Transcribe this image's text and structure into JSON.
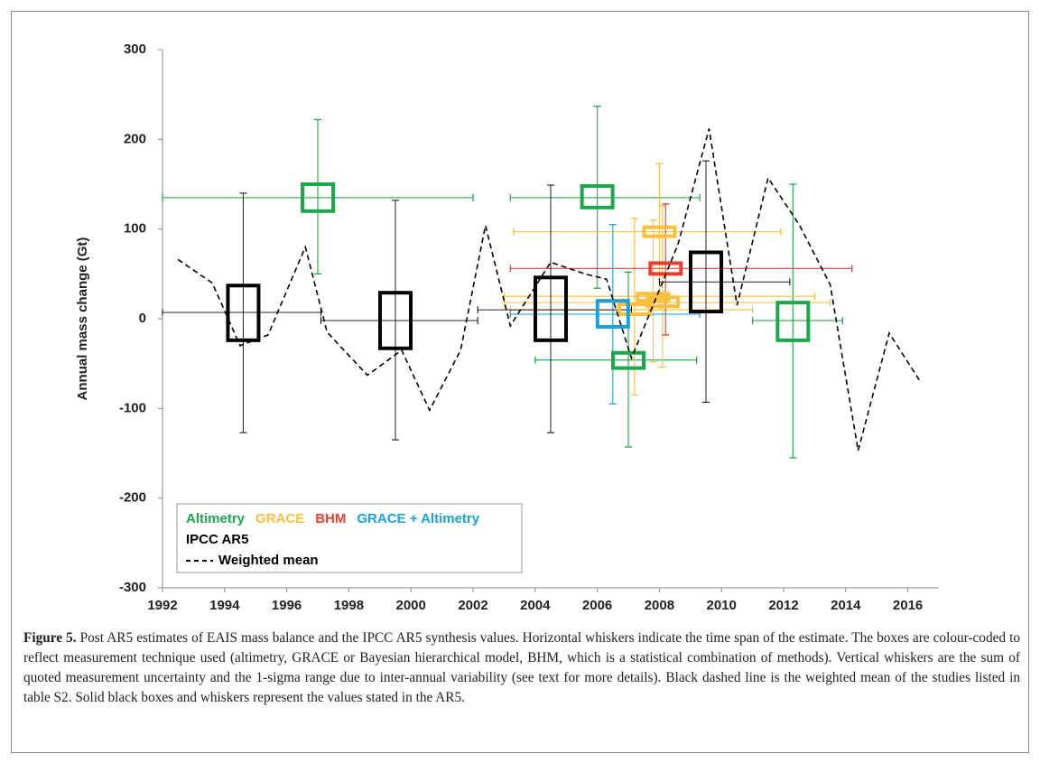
{
  "chart_data": {
    "type": "estimate",
    "ylabel": "Annual mass change (Gt)",
    "xlim": [
      1992,
      2017
    ],
    "xticks": [
      1992,
      1994,
      1996,
      1998,
      2000,
      2002,
      2004,
      2006,
      2008,
      2010,
      2012,
      2014,
      2016
    ],
    "ylim": [
      -300,
      300
    ],
    "yticks": [
      -300,
      -200,
      -100,
      0,
      100,
      200,
      300
    ],
    "series": [
      {
        "name": "Altimetry",
        "color": "#1ba84a",
        "estimates": [
          {
            "x_start": 1992,
            "x_end": 2002,
            "x": 1997,
            "value": 135,
            "low": 120,
            "high": 150,
            "whisker_low": 50,
            "whisker_high": 222
          },
          {
            "x_start": 2003.2,
            "x_end": 2009.3,
            "x": 2006,
            "value": 135,
            "low": 124,
            "high": 148,
            "whisker_low": 34,
            "whisker_high": 237
          },
          {
            "x_start": 2004,
            "x_end": 2009.2,
            "x": 2007,
            "value": -46,
            "low": -55,
            "high": -38,
            "whisker_low": -143,
            "whisker_high": 52
          },
          {
            "x_start": 2011,
            "x_end": 2013.9,
            "x": 2012.3,
            "value": -2,
            "low": -24,
            "high": 18,
            "whisker_low": -155,
            "whisker_high": 150
          }
        ]
      },
      {
        "name": "GRACE",
        "color": "#fbbf3c",
        "estimates": [
          {
            "x_start": 2003.3,
            "x_end": 2011.9,
            "x": 2008,
            "value": 97,
            "low": 92,
            "high": 102,
            "whisker_low": 10,
            "whisker_high": 173
          },
          {
            "x_start": 2003.2,
            "x_end": 2011,
            "x": 2007.2,
            "value": 10,
            "low": 5,
            "high": 16,
            "whisker_low": -85,
            "whisker_high": 112
          },
          {
            "x_start": 2003,
            "x_end": 2013.5,
            "x": 2008.1,
            "value": 18,
            "low": 14,
            "high": 24,
            "whisker_low": -54,
            "whisker_high": 126
          },
          {
            "x_start": 2003,
            "x_end": 2013,
            "x": 2007.8,
            "value": 25,
            "low": 20,
            "high": 28,
            "whisker_low": -48,
            "whisker_high": 110
          }
        ]
      },
      {
        "name": "BHM",
        "color": "#ef3b2c",
        "estimates": [
          {
            "x_start": 2003.2,
            "x_end": 2014.2,
            "x": 2008.2,
            "value": 56,
            "low": 50,
            "high": 62,
            "whisker_low": -18,
            "whisker_high": 128
          }
        ]
      },
      {
        "name": "GRACE + Altimetry",
        "color": "#1ba1dc",
        "estimates": [
          {
            "x_start": 2003.2,
            "x_end": 2009.3,
            "x": 2006.5,
            "value": 5,
            "low": -9,
            "high": 20,
            "whisker_low": -95,
            "whisker_high": 105
          }
        ]
      },
      {
        "name": "IPCC AR5",
        "color": "#000000",
        "estimates": [
          {
            "x_start": 1992,
            "x_end": 1997.1,
            "x": 1994.6,
            "value": 7,
            "low": -24,
            "high": 37,
            "whisker_low": -127,
            "whisker_high": 140
          },
          {
            "x_start": 1997.1,
            "x_end": 2002.15,
            "x": 1999.5,
            "value": -2,
            "low": -33,
            "high": 29,
            "whisker_low": -135,
            "whisker_high": 132
          },
          {
            "x_start": 2002.15,
            "x_end": 2007.1,
            "x": 2004.5,
            "value": 10,
            "low": -24,
            "high": 46,
            "whisker_low": -127,
            "whisker_high": 149
          },
          {
            "x_start": 2008,
            "x_end": 2012.2,
            "x": 2009.5,
            "value": 41,
            "low": 8,
            "high": 74,
            "whisker_low": -93,
            "whisker_high": 176
          }
        ]
      }
    ],
    "mean_line": {
      "name": "Weighted mean",
      "color": "#000000",
      "x": [
        1992.5,
        1993.6,
        1994.5,
        1995.4,
        1996.6,
        1997.3,
        1998.6,
        1999.7,
        2000.6,
        2001.6,
        2002.4,
        2003.2,
        2004.5,
        2005.6,
        2006.3,
        2007.1,
        2008.6,
        2009.6,
        2010.5,
        2011.5,
        2012.5,
        2013.5,
        2014.4,
        2015.4,
        2016.4
      ],
      "values": [
        66,
        40,
        -30,
        -18,
        80,
        -15,
        -63,
        -35,
        -102,
        -35,
        104,
        -8,
        63,
        50,
        44,
        -44,
        83,
        212,
        15,
        157,
        105,
        38,
        -147,
        -16,
        -70
      ]
    }
  },
  "caption": {
    "label": "Figure 5.",
    "text": "Post AR5 estimates of EAIS mass balance and the IPCC AR5 synthesis values. Horizontal whiskers indicate the time span of the estimate. The boxes are colour-coded to reflect measurement technique used (altimetry, GRACE or Bayesian hierarchical model, BHM, which is a statistical combination of methods). Vertical whiskers are the sum of quoted measurement uncertainty and the 1-sigma range due to inter-annual variability (see text for more details). Black dashed line is the weighted mean of the studies listed in table S2. Solid black boxes and whiskers represent the values stated in the AR5."
  }
}
